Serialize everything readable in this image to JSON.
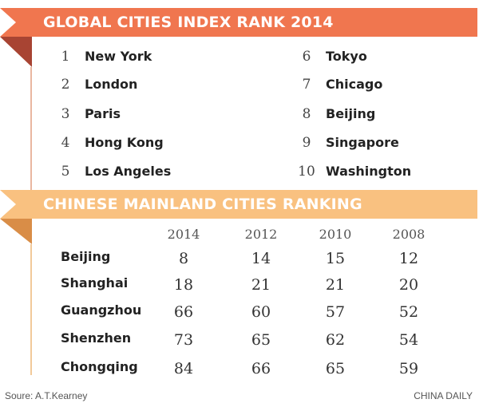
{
  "chart_data": [
    {
      "type": "table",
      "title": "GLOBAL CITIES INDEX RANK 2014",
      "rows": [
        {
          "rank": "1",
          "city": "New York"
        },
        {
          "rank": "2",
          "city": "London"
        },
        {
          "rank": "3",
          "city": "Paris"
        },
        {
          "rank": "4",
          "city": "Hong Kong"
        },
        {
          "rank": "5",
          "city": "Los Angeles"
        },
        {
          "rank": "6",
          "city": "Tokyo"
        },
        {
          "rank": "7",
          "city": "Chicago"
        },
        {
          "rank": "8",
          "city": "Beijing"
        },
        {
          "rank": "9",
          "city": "Singapore"
        },
        {
          "rank": "10",
          "city": "Washington"
        }
      ]
    },
    {
      "type": "table",
      "title": "CHINESE MAINLAND CITIES RANKING",
      "columns": [
        "2014",
        "2012",
        "2010",
        "2008"
      ],
      "rows": [
        {
          "city": "Beijing",
          "values": [
            "8",
            "14",
            "15",
            "12"
          ]
        },
        {
          "city": "Shanghai",
          "values": [
            "18",
            "21",
            "21",
            "20"
          ]
        },
        {
          "city": "Guangzhou",
          "values": [
            "66",
            "60",
            "57",
            "52"
          ]
        },
        {
          "city": "Shenzhen",
          "values": [
            "73",
            "65",
            "62",
            "54"
          ]
        },
        {
          "city": "Chongqing",
          "values": [
            "84",
            "66",
            "65",
            "59"
          ]
        }
      ]
    }
  ],
  "footer": {
    "source": "Soure: A.T.Kearney",
    "credit": "CHINA DAILY"
  },
  "colors": {
    "banner_global": "#f0764f",
    "banner_chinese": "#f9c180"
  }
}
